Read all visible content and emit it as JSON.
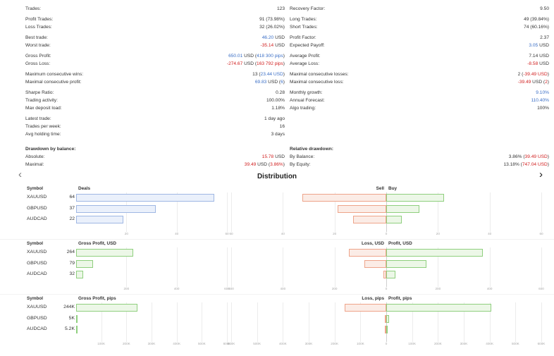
{
  "stats_left": [
    {
      "label": "Trades:",
      "value": "123"
    },
    {
      "label": "Profit Trades:",
      "value": "91 (73.98%)"
    },
    {
      "label": "Loss Trades:",
      "value": "32 (26.02%)"
    },
    {
      "label": "Best trade:",
      "value": "46.20 USD"
    },
    {
      "label": "Worst trade:",
      "value": "-35.14 USD"
    },
    {
      "label": "Gross Profit:",
      "value": "650.01 USD (418 300 pips)"
    },
    {
      "label": "Gross Loss:",
      "value": "-274.67 USD (163 792 pips)"
    },
    {
      "label": "Maximum consecutive wins:",
      "value": "13 (23.44 USD)"
    },
    {
      "label": "Maximal consecutive profit:",
      "value": "69.83 USD (6)"
    },
    {
      "label": "Sharpe Ratio:",
      "value": "0.28"
    },
    {
      "label": "Trading activity:",
      "value": "100.00%"
    },
    {
      "label": "Max deposit load:",
      "value": "1.18%"
    },
    {
      "label": "Latest trade:",
      "value": "1 day ago"
    },
    {
      "label": "Trades per week:",
      "value": "16"
    },
    {
      "label": "Avg holding time:",
      "value": "3 days"
    },
    {
      "label": "Drawdown by balance:",
      "value": ""
    },
    {
      "label": "Absolute:",
      "value": "15.78 USD"
    },
    {
      "label": "Maximal:",
      "value": "39.49 USD (3.86%)"
    }
  ],
  "stats_right": [
    {
      "label": "Recovery Factor:",
      "value": "9.50"
    },
    {
      "label": "Long Trades:",
      "value": "49 (39.84%)"
    },
    {
      "label": "Short Trades:",
      "value": "74 (60.16%)"
    },
    {
      "label": "Profit Factor:",
      "value": "2.37"
    },
    {
      "label": "Expected Payoff:",
      "value": "3.05 USD"
    },
    {
      "label": "Average Profit:",
      "value": "7.14 USD"
    },
    {
      "label": "Average Loss:",
      "value": "-8.58 USD"
    },
    {
      "label": "Maximal consecutive losses:",
      "value": "2 (-39.49 USD)"
    },
    {
      "label": "Maximal consecutive loss:",
      "value": "-39.49 USD (2)"
    },
    {
      "label": "Monthly growth:",
      "value": "9.10%"
    },
    {
      "label": "Annual Forecast:",
      "value": "110.40%"
    },
    {
      "label": "Algo trading:",
      "value": "100%"
    },
    {
      "label": "Relative drawdown:",
      "value": ""
    },
    {
      "label": "By Balance:",
      "value": "3.86% (39.49 USD)"
    },
    {
      "label": "By Equity:",
      "value": "13.18% (747.04 USD)"
    }
  ],
  "distribution": {
    "title": "Distribution",
    "prev_icon": "‹",
    "next_icon": "›"
  },
  "chart_data": [
    {
      "type": "bar",
      "title": "Deals",
      "symbol_header": "Symbol",
      "left_header": "Deals",
      "right_header_left": "Sell",
      "right_header_right": "Buy",
      "categories": [
        "XAUUSD",
        "GBPUSD",
        "AUDCAD"
      ],
      "count_labels": [
        "64",
        "37",
        "22"
      ],
      "values": [
        64,
        37,
        22
      ],
      "sell": [
        38,
        22,
        15
      ],
      "buy": [
        26,
        15,
        7
      ],
      "left_ticks": [
        "20",
        "40",
        "60"
      ],
      "left_max": 70,
      "right_ticks": [
        "60",
        "40",
        "20",
        "0",
        "20",
        "40",
        "60"
      ],
      "right_range": 70
    },
    {
      "type": "bar",
      "title": "Gross Profit, USD",
      "symbol_header": "Symbol",
      "left_header": "Gross Profit, USD",
      "right_header_left": "Loss, USD",
      "right_header_right": "Profit, USD",
      "categories": [
        "XAUUSD",
        "GBPUSD",
        "AUDCAD"
      ],
      "count_labels": [
        "264",
        "79",
        "32"
      ],
      "values": [
        264,
        79,
        32
      ],
      "loss": [
        170,
        100,
        13
      ],
      "profit": [
        435,
        180,
        40
      ],
      "left_ticks": [
        "200",
        "400",
        "600"
      ],
      "left_max": 700,
      "right_ticks": [
        "600",
        "400",
        "200",
        "0",
        "200",
        "400",
        "600"
      ],
      "right_range": 700
    },
    {
      "type": "bar",
      "title": "Gross Profit, pips",
      "symbol_header": "Symbol",
      "left_header": "Gross Profit, pips",
      "right_header_left": "Loss, pips",
      "right_header_right": "Profit, pips",
      "categories": [
        "XAUUSD",
        "GBPUSD",
        "AUDCAD"
      ],
      "count_labels": [
        "244K",
        "5K",
        "5.2K"
      ],
      "values": [
        244000,
        5000,
        5200
      ],
      "loss": [
        160000,
        6000,
        6000
      ],
      "profit": [
        405000,
        12000,
        6500
      ],
      "left_ticks": [
        "100K",
        "200K",
        "300K",
        "400K",
        "500K",
        "600K"
      ],
      "left_max": 600000,
      "right_ticks": [
        "600K",
        "500K",
        "400K",
        "300K",
        "200K",
        "100K",
        "0",
        "100K",
        "200K",
        "300K",
        "400K",
        "500K",
        "600K"
      ],
      "right_range": 600000
    }
  ]
}
